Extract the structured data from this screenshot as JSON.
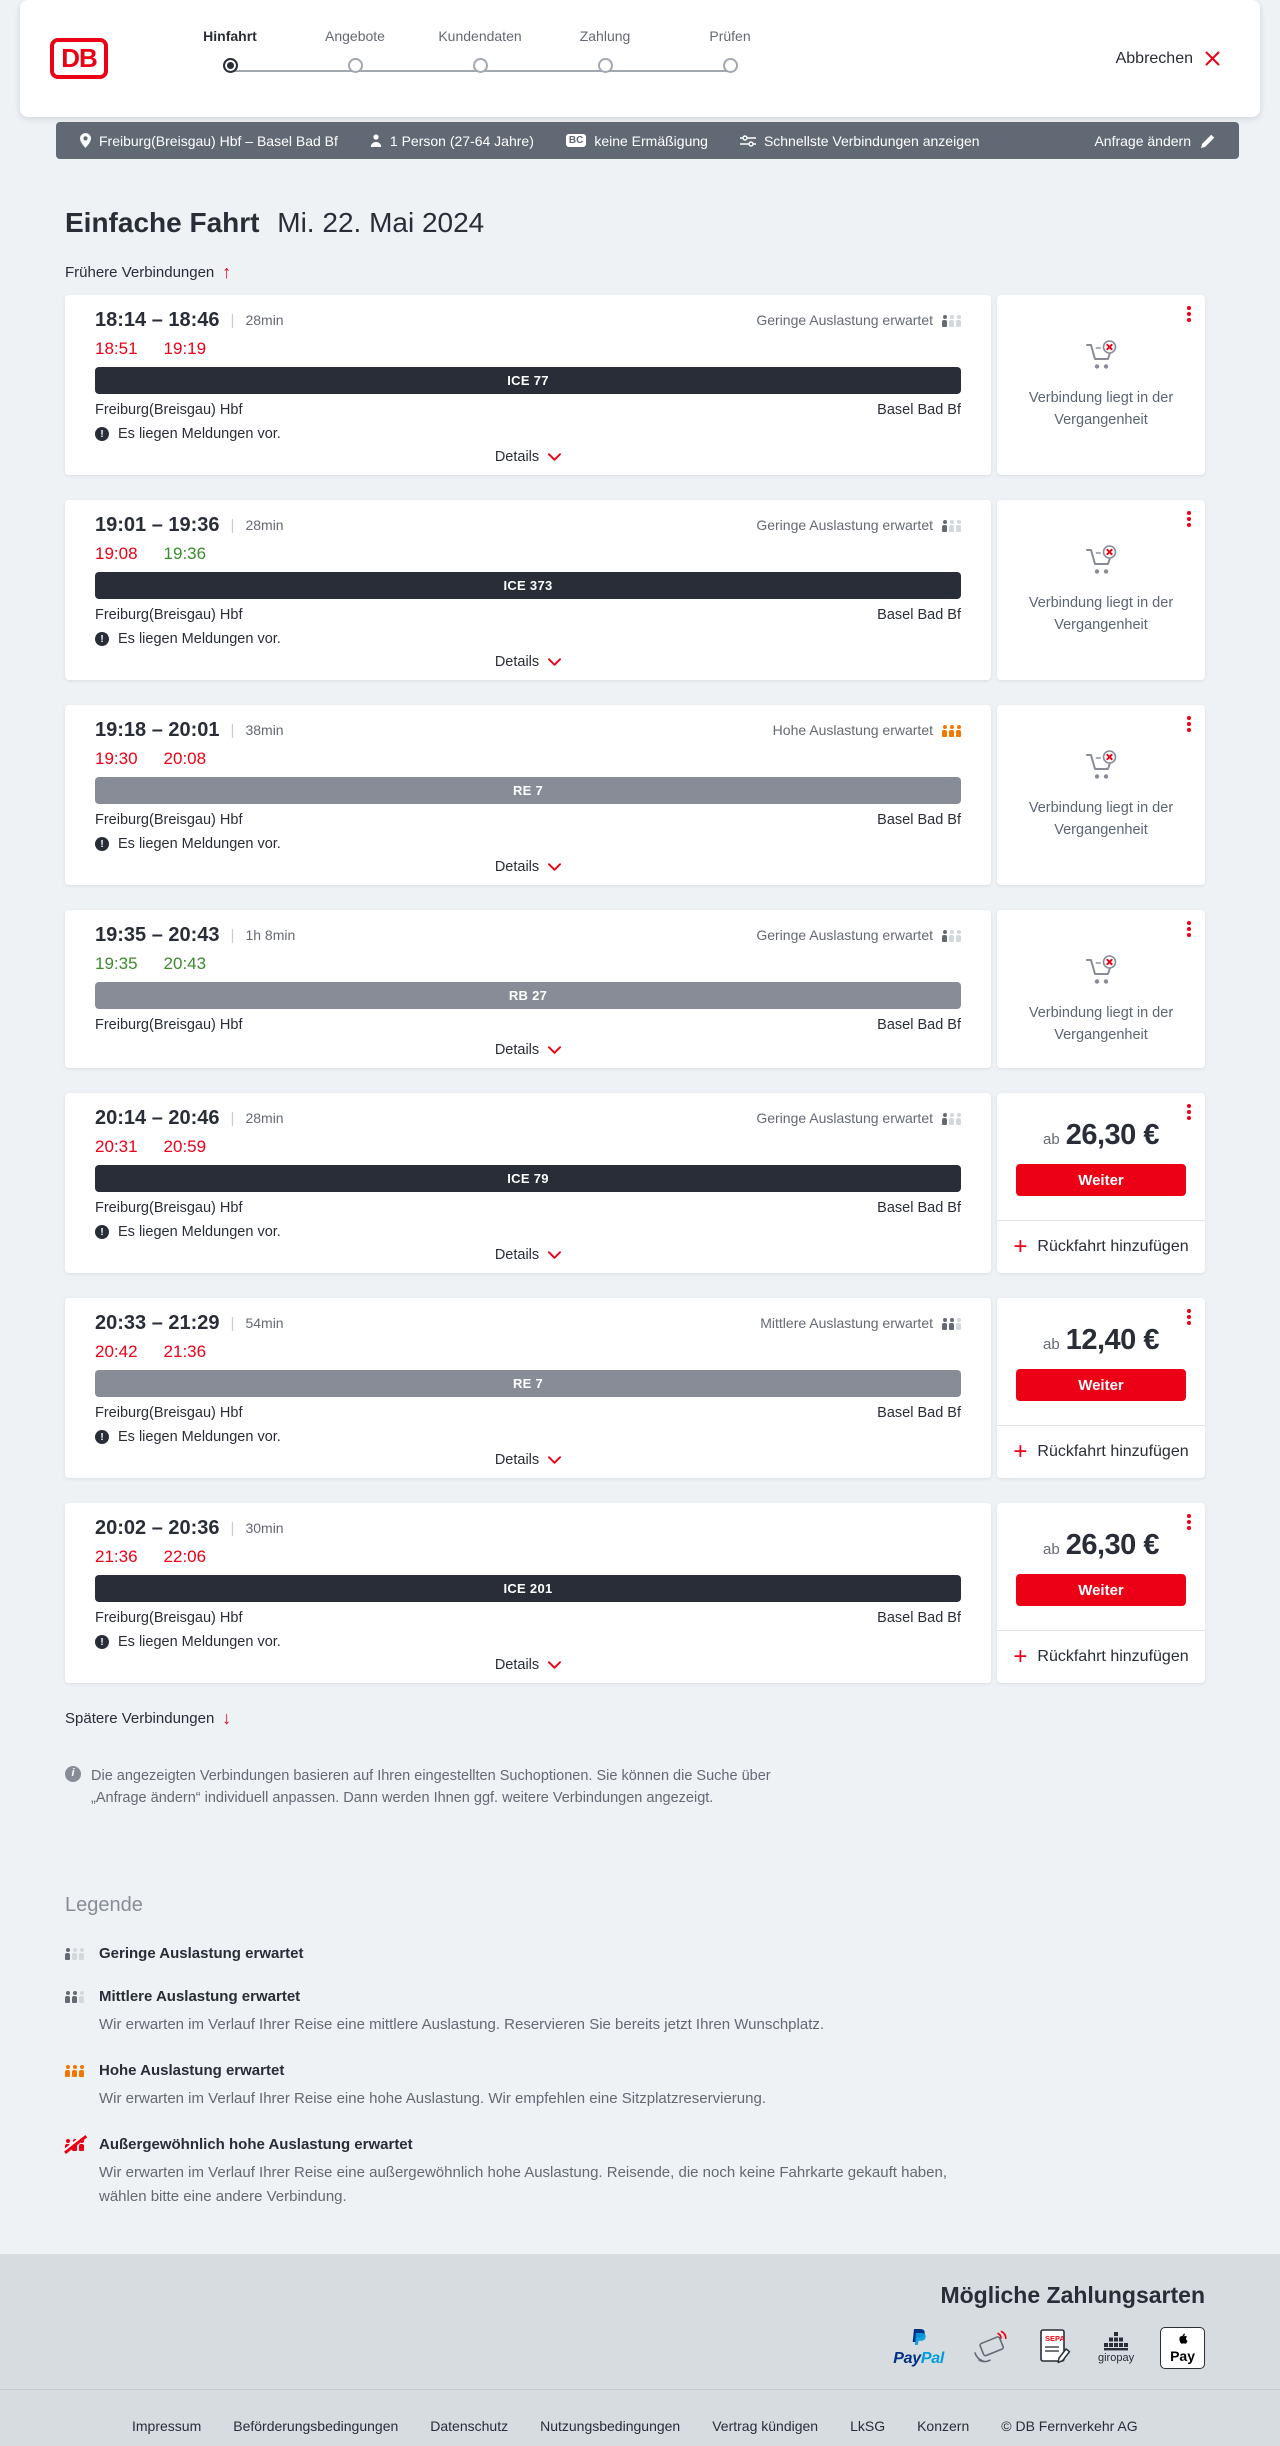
{
  "header": {
    "logo": "DB",
    "steps": [
      {
        "label": "Hinfahrt",
        "active": true
      },
      {
        "label": "Angebote",
        "active": false
      },
      {
        "label": "Kundendaten",
        "active": false
      },
      {
        "label": "Zahlung",
        "active": false
      },
      {
        "label": "Prüfen",
        "active": false
      }
    ],
    "cancel_label": "Abbrechen"
  },
  "summary_bar": {
    "route": "Freiburg(Breisgau) Hbf – Basel Bad Bf",
    "passengers": "1 Person (27-64 Jahre)",
    "discount_badge": "BC",
    "discount": "keine Ermäßigung",
    "fastest": "Schnellste Verbindungen anzeigen",
    "change_request": "Anfrage ändern"
  },
  "page": {
    "title": "Einfache Fahrt",
    "date": "Mi. 22. Mai 2024",
    "earlier": "Frühere Verbindungen",
    "later": "Spätere Verbindungen",
    "info_note": "Die angezeigten Verbindungen basieren auf Ihren eingestellten Suchoptionen. Sie können die Suche über „Anfrage ändern“ individuell anpassen. Dann werden Ihnen ggf. weitere Verbindungen angezeigt."
  },
  "labels": {
    "messages": "Es liegen Meldungen vor.",
    "details": "Details"
  },
  "colors": {
    "brand_red": "#ec0016",
    "dark": "#282d37",
    "gray_text": "#646973",
    "delay_red": "#ec0016",
    "ontime_green": "#3c8a2e",
    "occupancy_orange": "#f07800",
    "bar_slate": "#616a74"
  },
  "connections": [
    {
      "times": "18:14 – 18:46",
      "duration": "28min",
      "occupancy": "Geringe Auslastung erwartet",
      "occupancy_level": "low",
      "delay_depart": "18:51",
      "delay_arrive": "19:19",
      "delay_depart_status": "delayed",
      "delay_arrive_status": "delayed",
      "train": "ICE 77",
      "product": "ICE",
      "from": "Freiburg(Breisgau) Hbf",
      "to": "Basel Bad Bf",
      "has_messages": true,
      "action": {
        "type": "past",
        "label": "Verbindung liegt in der Vergangenheit"
      }
    },
    {
      "times": "19:01 – 19:36",
      "duration": "28min",
      "occupancy": "Geringe Auslastung erwartet",
      "occupancy_level": "low",
      "delay_depart": "19:08",
      "delay_arrive": "19:36",
      "delay_depart_status": "delayed",
      "delay_arrive_status": "ontime",
      "train": "ICE 373",
      "product": "ICE",
      "from": "Freiburg(Breisgau) Hbf",
      "to": "Basel Bad Bf",
      "has_messages": true,
      "action": {
        "type": "past",
        "label": "Verbindung liegt in der Vergangenheit"
      }
    },
    {
      "times": "19:18 – 20:01",
      "duration": "38min",
      "occupancy": "Hohe Auslastung erwartet",
      "occupancy_level": "high",
      "delay_depart": "19:30",
      "delay_arrive": "20:08",
      "delay_depart_status": "delayed",
      "delay_arrive_status": "delayed",
      "train": "RE 7",
      "product": "RE",
      "from": "Freiburg(Breisgau) Hbf",
      "to": "Basel Bad Bf",
      "has_messages": true,
      "action": {
        "type": "past",
        "label": "Verbindung liegt in der Vergangenheit"
      }
    },
    {
      "times": "19:35 – 20:43",
      "duration": "1h 8min",
      "occupancy": "Geringe Auslastung erwartet",
      "occupancy_level": "low",
      "delay_depart": "19:35",
      "delay_arrive": "20:43",
      "delay_depart_status": "ontime",
      "delay_arrive_status": "ontime",
      "train": "RB 27",
      "product": "RB",
      "from": "Freiburg(Breisgau) Hbf",
      "to": "Basel Bad Bf",
      "has_messages": false,
      "action": {
        "type": "past",
        "label": "Verbindung liegt in der Vergangenheit"
      }
    },
    {
      "times": "20:14 – 20:46",
      "duration": "28min",
      "occupancy": "Geringe Auslastung erwartet",
      "occupancy_level": "low",
      "delay_depart": "20:31",
      "delay_arrive": "20:59",
      "delay_depart_status": "delayed",
      "delay_arrive_status": "delayed",
      "train": "ICE 79",
      "product": "ICE",
      "from": "Freiburg(Breisgau) Hbf",
      "to": "Basel Bad Bf",
      "has_messages": true,
      "action": {
        "type": "buy",
        "price_prefix": "ab",
        "price": "26,30 €",
        "button_label": "Weiter",
        "add_return_label": "Rückfahrt hinzufügen"
      }
    },
    {
      "times": "20:33 – 21:29",
      "duration": "54min",
      "occupancy": "Mittlere Auslastung erwartet",
      "occupancy_level": "medium",
      "delay_depart": "20:42",
      "delay_arrive": "21:36",
      "delay_depart_status": "delayed",
      "delay_arrive_status": "delayed",
      "train": "RE 7",
      "product": "RE",
      "from": "Freiburg(Breisgau) Hbf",
      "to": "Basel Bad Bf",
      "has_messages": true,
      "action": {
        "type": "buy",
        "price_prefix": "ab",
        "price": "12,40 €",
        "button_label": "Weiter",
        "add_return_label": "Rückfahrt hinzufügen"
      }
    },
    {
      "times": "20:02 – 20:36",
      "duration": "30min",
      "occupancy": null,
      "occupancy_level": null,
      "delay_depart": "21:36",
      "delay_arrive": "22:06",
      "delay_depart_status": "delayed",
      "delay_arrive_status": "delayed",
      "train": "ICE 201",
      "product": "ICE",
      "from": "Freiburg(Breisgau) Hbf",
      "to": "Basel Bad Bf",
      "has_messages": true,
      "action": {
        "type": "buy",
        "price_prefix": "ab",
        "price": "26,30 €",
        "button_label": "Weiter",
        "add_return_label": "Rückfahrt hinzufügen"
      }
    }
  ],
  "legend": {
    "title": "Legende",
    "items": [
      {
        "level": "low",
        "title": "Geringe Auslastung erwartet",
        "desc": null
      },
      {
        "level": "medium",
        "title": "Mittlere Auslastung erwartet",
        "desc": "Wir erwarten im Verlauf Ihrer Reise eine mittlere Auslastung. Reservieren Sie bereits jetzt Ihren Wunschplatz."
      },
      {
        "level": "high",
        "title": "Hohe Auslastung erwartet",
        "desc": "Wir erwarten im Verlauf Ihrer Reise eine hohe Auslastung. Wir empfehlen eine Sitzplatzreservierung."
      },
      {
        "level": "exceptional",
        "title": "Außergewöhnlich hohe Auslastung erwartet",
        "desc": "Wir erwarten im Verlauf Ihrer Reise eine außergewöhnlich hohe Auslastung. Reisende, die noch keine Fahrkarte gekauft haben, wählen bitte eine andere Verbindung."
      }
    ]
  },
  "payments": {
    "title": "Mögliche Zahlungsarten",
    "methods": [
      {
        "id": "paypal",
        "label_parts": [
          "Pay",
          "Pal"
        ]
      },
      {
        "id": "kreditkarte"
      },
      {
        "id": "sepa",
        "label": "SEPA"
      },
      {
        "id": "giropay",
        "label": "giropay"
      },
      {
        "id": "applepay",
        "label": "Pay"
      }
    ]
  },
  "footer": {
    "links": [
      {
        "label": "Impressum",
        "link": true
      },
      {
        "label": "Beförderungsbedingungen",
        "link": true
      },
      {
        "label": "Datenschutz",
        "link": true
      },
      {
        "label": "Nutzungsbedingungen",
        "link": true
      },
      {
        "label": "Vertrag kündigen",
        "link": true
      },
      {
        "label": "LkSG",
        "link": true
      },
      {
        "label": "Konzern",
        "link": true
      },
      {
        "label": "© DB Fernverkehr AG",
        "link": false
      }
    ]
  }
}
